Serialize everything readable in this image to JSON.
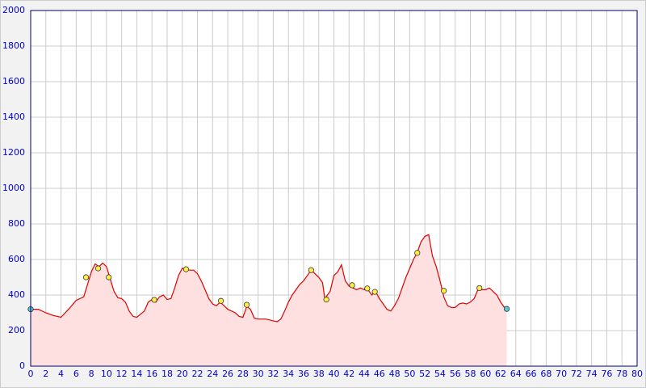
{
  "chart_data": {
    "type": "area",
    "xlim": [
      0,
      80
    ],
    "ylim": [
      0,
      2000
    ],
    "xticks": [
      0,
      2,
      4,
      6,
      8,
      10,
      12,
      14,
      16,
      18,
      20,
      22,
      24,
      26,
      28,
      30,
      32,
      34,
      36,
      38,
      40,
      42,
      44,
      46,
      48,
      50,
      52,
      54,
      56,
      58,
      60,
      62,
      64,
      66,
      68,
      70,
      72,
      74,
      76,
      78,
      80
    ],
    "yticks": [
      0,
      200,
      400,
      600,
      800,
      1000,
      1200,
      1400,
      1600,
      1800,
      2000
    ],
    "grid": true,
    "line": {
      "color": "#e00000",
      "fill": "#ffe0e0",
      "x": [
        0,
        1,
        2,
        3,
        4,
        5,
        6,
        7,
        7.5,
        8,
        8.5,
        9,
        9.5,
        10,
        10.5,
        11,
        11.5,
        12,
        12.5,
        13,
        13.5,
        14,
        15,
        15.5,
        16,
        16.5,
        17,
        17.5,
        18,
        18.5,
        19,
        19.5,
        20,
        20.5,
        21,
        21.5,
        22,
        22.5,
        23,
        23.5,
        24,
        24.5,
        25,
        25.5,
        26,
        27,
        27.5,
        28,
        28.5,
        29,
        29.5,
        30,
        31,
        32,
        32.5,
        33,
        33.5,
        34,
        34.5,
        35,
        35.5,
        36,
        36.5,
        37,
        37.5,
        38,
        38.5,
        38.8,
        39.5,
        40,
        40.5,
        41,
        41.5,
        42,
        42.5,
        43,
        43.5,
        44,
        44.5,
        45,
        45.5,
        46,
        46.5,
        47,
        47.5,
        48,
        48.5,
        49,
        49.5,
        50,
        50.5,
        51,
        51.5,
        52,
        52.5,
        53,
        53.5,
        54,
        54.5,
        55,
        55.5,
        56,
        56.5,
        57,
        57.5,
        58,
        58.5,
        59,
        59.5,
        60,
        60.5,
        61,
        61.5,
        62,
        62.5,
        62.8
      ],
      "values": [
        320,
        320,
        300,
        285,
        275,
        320,
        370,
        390,
        460,
        530,
        575,
        560,
        580,
        560,
        490,
        420,
        385,
        380,
        360,
        310,
        280,
        275,
        310,
        360,
        375,
        360,
        390,
        400,
        375,
        380,
        440,
        510,
        550,
        545,
        540,
        540,
        520,
        480,
        430,
        380,
        350,
        340,
        360,
        340,
        320,
        300,
        280,
        275,
        335,
        320,
        270,
        265,
        265,
        255,
        250,
        265,
        310,
        360,
        400,
        430,
        460,
        480,
        510,
        540,
        520,
        500,
        470,
        380,
        420,
        510,
        530,
        570,
        480,
        450,
        440,
        430,
        440,
        430,
        430,
        400,
        420,
        380,
        350,
        320,
        310,
        340,
        380,
        440,
        500,
        550,
        600,
        640,
        700,
        730,
        740,
        620,
        560,
        480,
        390,
        340,
        330,
        330,
        350,
        355,
        350,
        360,
        380,
        430,
        430,
        430,
        440,
        420,
        400,
        360,
        330,
        320
      ]
    },
    "markers": [
      {
        "color": "#55ccdd",
        "x": [
          0,
          62.8
        ],
        "values": [
          320,
          322
        ]
      },
      {
        "color": "#ffee44",
        "x": [
          7.3,
          8.9,
          10.3,
          16.3,
          20.5,
          25.1,
          28.5,
          37,
          39,
          42.4,
          44.4,
          45.4,
          51,
          54.5,
          59.2
        ],
        "values": [
          500,
          550,
          500,
          373,
          545,
          367,
          345,
          540,
          375,
          455,
          437,
          418,
          637,
          424,
          439
        ]
      }
    ]
  }
}
